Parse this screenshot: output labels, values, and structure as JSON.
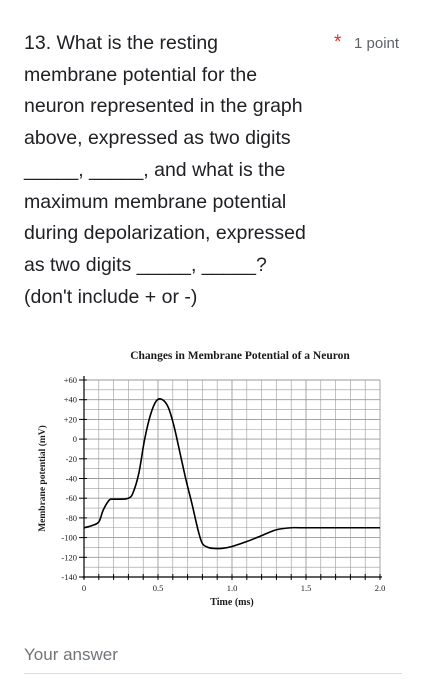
{
  "question": {
    "lines": [
      "13. What is the resting",
      "membrane potential for the",
      "neuron represented in the graph",
      "above, expressed as two digits",
      "_____, _____, and what is the",
      "maximum membrane potential",
      "during depolarization, expressed",
      "as two digits _____, _____?",
      "(don't include + or -)"
    ],
    "required_marker": "*",
    "points": "1 point"
  },
  "chart_data": {
    "type": "line",
    "title": "Changes in Membrane Potential of a Neuron",
    "xlabel": "Time (ms)",
    "ylabel": "Membrane potential (mV)",
    "xlim": [
      0,
      2.0
    ],
    "ylim": [
      -140,
      60
    ],
    "x_ticks": [
      "0",
      "0.5",
      "1.0",
      "1.5",
      "2.0"
    ],
    "y_ticks": [
      "+60",
      "+40",
      "+20",
      "0",
      "-20",
      "-40",
      "-60",
      "-80",
      "-100",
      "-120",
      "-140"
    ],
    "grid": true,
    "series": [
      {
        "x": [
          0,
          0.05,
          0.1,
          0.13,
          0.17,
          0.2,
          0.25,
          0.3,
          0.33,
          0.37,
          0.41,
          0.45,
          0.49,
          0.53,
          0.57,
          0.61,
          0.65,
          0.69,
          0.73,
          0.77,
          0.8,
          0.84,
          0.88,
          0.93,
          1.0,
          1.1,
          1.2,
          1.3,
          1.4,
          1.5,
          2.0
        ],
        "y": [
          -90,
          -88,
          -84,
          -72,
          -62,
          -61,
          -61,
          -60,
          -55,
          -35,
          0,
          25,
          39,
          40,
          32,
          12,
          -15,
          -42,
          -66,
          -92,
          -106,
          -110,
          -111,
          -111,
          -109,
          -104,
          -98,
          -92,
          -90,
          -90,
          -90
        ]
      }
    ],
    "line_color": "#000000"
  },
  "answer": {
    "placeholder": "Your answer"
  }
}
